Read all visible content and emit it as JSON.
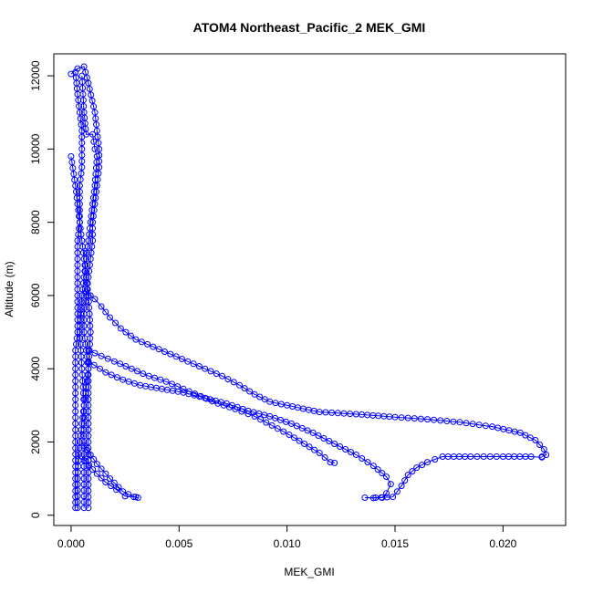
{
  "chart_data": {
    "type": "scatter",
    "title": "ATOM4 Northeast_Pacific_2 MEK_GMI",
    "xlabel": "MEK_GMI",
    "ylabel": "Altitude (m)",
    "xlim": [
      -0.0008,
      0.0229
    ],
    "ylim": [
      -280,
      12600
    ],
    "xticks": [
      0.0,
      0.005,
      0.01,
      0.015,
      0.02
    ],
    "xtick_labels": [
      "0.000",
      "0.005",
      "0.010",
      "0.015",
      "0.020"
    ],
    "yticks": [
      0,
      2000,
      4000,
      6000,
      8000,
      10000,
      12000
    ],
    "ytick_labels": [
      "0",
      "2000",
      "4000",
      "6000",
      "8000",
      "10000",
      "12000"
    ],
    "grid": false,
    "color": "#0000ff",
    "marker": "open-circle-with-lines",
    "series": [
      {
        "values": [
          [
            0.0,
            12050
          ],
          [
            0.0003,
            12200
          ],
          [
            0.0006,
            12250
          ],
          [
            0.0008,
            11800
          ],
          [
            0.0011,
            11000
          ],
          [
            0.0012,
            10500
          ],
          [
            0.0013,
            10000
          ],
          [
            0.0013,
            9500
          ],
          [
            0.0012,
            9000
          ],
          [
            0.0011,
            8500
          ],
          [
            0.001,
            8000
          ],
          [
            0.001,
            7500
          ],
          [
            0.0009,
            7000
          ],
          [
            0.0008,
            6500
          ],
          [
            0.0007,
            6000
          ],
          [
            0.0006,
            5500
          ],
          [
            0.0006,
            5000
          ],
          [
            0.0007,
            4500
          ],
          [
            0.0008,
            4000
          ],
          [
            0.0008,
            3500
          ],
          [
            0.0008,
            3000
          ],
          [
            0.0008,
            2500
          ],
          [
            0.0008,
            2000
          ],
          [
            0.0008,
            1500
          ],
          [
            0.0008,
            1000
          ],
          [
            0.0008,
            500
          ],
          [
            0.0008,
            200
          ]
        ]
      },
      {
        "values": [
          [
            0.0002,
            12100
          ],
          [
            0.0003,
            11500
          ],
          [
            0.0004,
            11000
          ],
          [
            0.0005,
            10500
          ],
          [
            0.0005,
            10000
          ],
          [
            0.0005,
            9500
          ],
          [
            0.0004,
            9000
          ],
          [
            0.0004,
            8500
          ],
          [
            0.0004,
            8000
          ],
          [
            0.0003,
            7500
          ],
          [
            0.0003,
            7000
          ],
          [
            0.0003,
            6500
          ],
          [
            0.0003,
            6000
          ],
          [
            0.0003,
            5500
          ],
          [
            0.0003,
            5000
          ],
          [
            0.0002,
            4500
          ],
          [
            0.0002,
            4000
          ],
          [
            0.0002,
            3500
          ],
          [
            0.0002,
            3000
          ],
          [
            0.0002,
            2500
          ],
          [
            0.0002,
            2000
          ],
          [
            0.0002,
            1500
          ],
          [
            0.0002,
            1000
          ],
          [
            0.0002,
            500
          ],
          [
            0.0002,
            200
          ]
        ]
      },
      {
        "values": [
          [
            0.0005,
            12000
          ],
          [
            0.0006,
            11000
          ],
          [
            0.0007,
            10400
          ],
          [
            0.001,
            10400
          ],
          [
            0.0011,
            10000
          ],
          [
            0.0012,
            9800
          ],
          [
            0.0011,
            9000
          ],
          [
            0.0009,
            8000
          ],
          [
            0.0007,
            7000
          ],
          [
            0.0005,
            6000
          ],
          [
            0.0004,
            5000
          ],
          [
            0.0005,
            4000
          ],
          [
            0.0006,
            3000
          ],
          [
            0.0006,
            2000
          ],
          [
            0.0006,
            1000
          ],
          [
            0.0006,
            200
          ]
        ]
      },
      {
        "values": [
          [
            0.0,
            9800
          ],
          [
            0.0002,
            9000
          ],
          [
            0.0004,
            8000
          ],
          [
            0.0006,
            7000
          ],
          [
            0.0008,
            6000
          ],
          [
            0.0009,
            5000
          ],
          [
            0.0008,
            4000
          ],
          [
            0.0006,
            3000
          ],
          [
            0.0004,
            2000
          ],
          [
            0.0003,
            1000
          ],
          [
            0.0003,
            200
          ]
        ]
      },
      {
        "values": [
          [
            0.0007,
            6100
          ],
          [
            0.0011,
            5900
          ],
          [
            0.0014,
            5700
          ],
          [
            0.0018,
            5400
          ],
          [
            0.0023,
            5100
          ],
          [
            0.003,
            4800
          ],
          [
            0.0038,
            4600
          ],
          [
            0.0046,
            4400
          ],
          [
            0.0054,
            4200
          ],
          [
            0.0062,
            4000
          ],
          [
            0.007,
            3800
          ],
          [
            0.0078,
            3550
          ],
          [
            0.0085,
            3300
          ],
          [
            0.0092,
            3100
          ],
          [
            0.01,
            3000
          ],
          [
            0.0115,
            2820
          ],
          [
            0.0132,
            2760
          ],
          [
            0.015,
            2680
          ],
          [
            0.0165,
            2620
          ],
          [
            0.018,
            2540
          ],
          [
            0.0195,
            2420
          ],
          [
            0.0208,
            2250
          ],
          [
            0.0215,
            2050
          ],
          [
            0.0219,
            1800
          ],
          [
            0.022,
            1650
          ],
          [
            0.0218,
            1600
          ]
        ]
      },
      {
        "values": [
          [
            0.0008,
            4500
          ],
          [
            0.0014,
            4350
          ],
          [
            0.002,
            4200
          ],
          [
            0.0028,
            4000
          ],
          [
            0.0036,
            3800
          ],
          [
            0.0044,
            3650
          ],
          [
            0.0052,
            3450
          ],
          [
            0.006,
            3250
          ],
          [
            0.0068,
            3050
          ],
          [
            0.0076,
            2900
          ],
          [
            0.0085,
            2700
          ],
          [
            0.0093,
            2450
          ],
          [
            0.0101,
            2200
          ],
          [
            0.0108,
            1950
          ],
          [
            0.0115,
            1700
          ],
          [
            0.012,
            1450
          ],
          [
            0.0122,
            1430
          ]
        ]
      },
      {
        "values": [
          [
            0.0008,
            4200
          ],
          [
            0.0016,
            3900
          ],
          [
            0.0024,
            3700
          ],
          [
            0.0032,
            3550
          ],
          [
            0.0042,
            3450
          ],
          [
            0.0052,
            3350
          ],
          [
            0.0062,
            3200
          ],
          [
            0.0072,
            3050
          ],
          [
            0.0082,
            2850
          ],
          [
            0.0092,
            2700
          ],
          [
            0.0102,
            2500
          ],
          [
            0.0112,
            2250
          ],
          [
            0.0122,
            1950
          ],
          [
            0.0132,
            1650
          ],
          [
            0.014,
            1350
          ],
          [
            0.0146,
            1050
          ],
          [
            0.0148,
            850
          ],
          [
            0.0146,
            600
          ],
          [
            0.0144,
            480
          ],
          [
            0.014,
            470
          ],
          [
            0.0136,
            480
          ],
          [
            0.0141,
            480
          ],
          [
            0.0149,
            500
          ],
          [
            0.0153,
            800
          ],
          [
            0.0156,
            1100
          ],
          [
            0.016,
            1300
          ],
          [
            0.0165,
            1450
          ],
          [
            0.0172,
            1600
          ],
          [
            0.0185,
            1600
          ],
          [
            0.02,
            1600
          ],
          [
            0.0213,
            1600
          ],
          [
            0.0218,
            1580
          ]
        ]
      },
      {
        "values": [
          [
            0.0006,
            1900
          ],
          [
            0.0012,
            1400
          ],
          [
            0.0018,
            1000
          ],
          [
            0.0024,
            650
          ],
          [
            0.0029,
            500
          ],
          [
            0.0031,
            480
          ]
        ]
      },
      {
        "values": [
          [
            0.0005,
            1600
          ],
          [
            0.001,
            1250
          ],
          [
            0.0016,
            900
          ],
          [
            0.0021,
            700
          ],
          [
            0.0025,
            520
          ],
          [
            0.003,
            500
          ]
        ]
      }
    ]
  }
}
